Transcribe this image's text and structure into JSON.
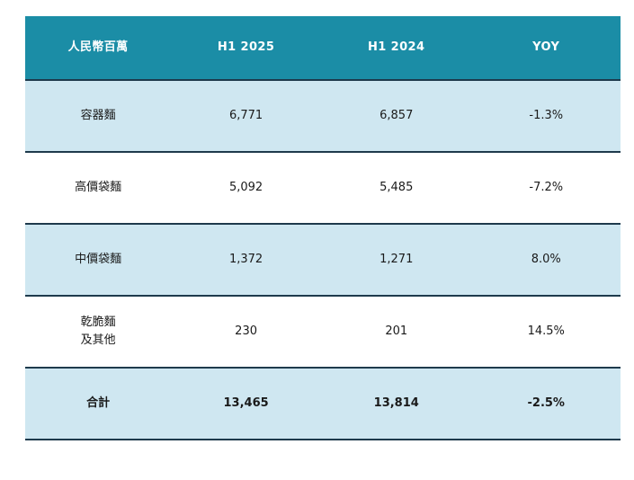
{
  "colors": {
    "header-bg": "#1B8DA6",
    "header-text": "#FFFFFF",
    "band-bg": "#CFE7F1",
    "row-bg": "#FFFFFF",
    "body-text": "#1A1A1A",
    "border": "#1E3A4C"
  },
  "chart_data": {
    "type": "table",
    "columns": [
      "人民幣百萬",
      "H1 2025",
      "H1 2024",
      "YOY"
    ],
    "rows": [
      {
        "cells": [
          "容器麵",
          "6,771",
          "6,857",
          "-1.3%"
        ]
      },
      {
        "cells": [
          "高價袋麵",
          "5,092",
          "5,485",
          "-7.2%"
        ]
      },
      {
        "cells": [
          "中價袋麵",
          "1,372",
          "1,271",
          "8.0%"
        ]
      },
      {
        "cells": [
          "乾脆麵\n及其他",
          "230",
          "201",
          "14.5%"
        ]
      },
      {
        "cells": [
          "合計",
          "13,465",
          "13,814",
          "-2.5%"
        ]
      }
    ],
    "numeric": {
      "categories": [
        "容器麵",
        "高價袋麵",
        "中價袋麵",
        "乾脆麵及其他",
        "合計"
      ],
      "series": [
        {
          "name": "H1 2025",
          "values": [
            6771,
            5092,
            1372,
            230,
            13465
          ]
        },
        {
          "name": "H1 2024",
          "values": [
            6857,
            5485,
            1271,
            201,
            13814
          ]
        },
        {
          "name": "YOY %",
          "values": [
            -1.3,
            -7.2,
            8.0,
            14.5,
            -2.5
          ]
        }
      ]
    }
  }
}
